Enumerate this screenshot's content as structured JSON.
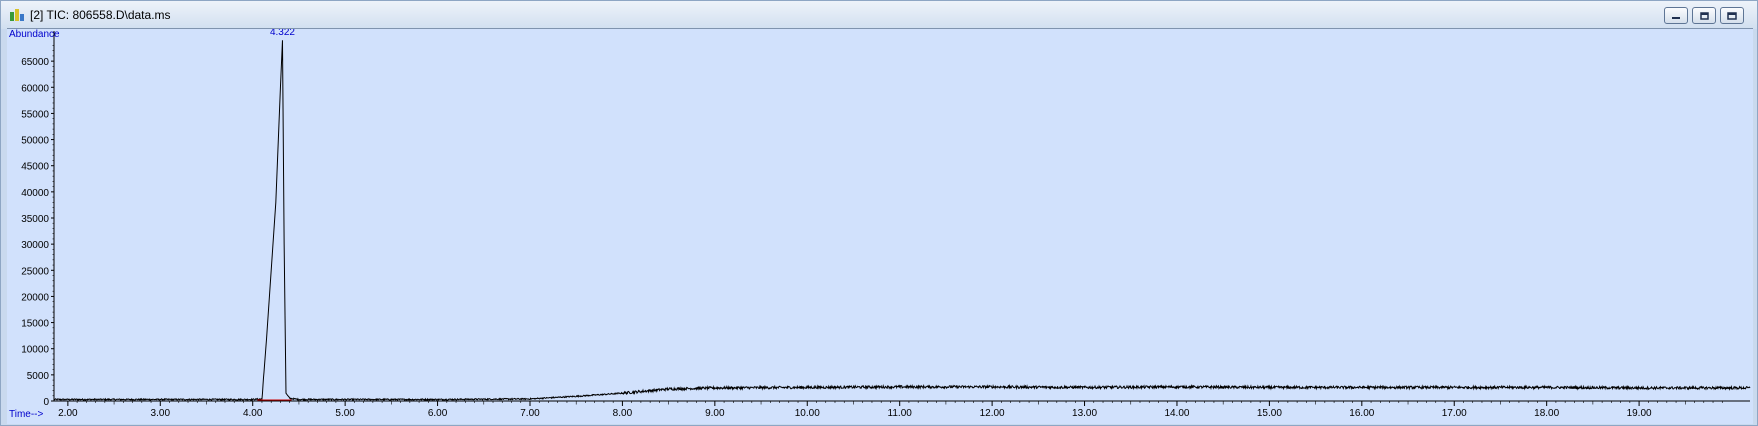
{
  "window": {
    "title": "[2] TIC: 806558.D\\data.ms",
    "icon": "chromatogram-app-icon",
    "buttons": [
      "minimize-icon",
      "restore-icon",
      "close-icon"
    ]
  },
  "colors": {
    "plot_bg": "#d1e1fc",
    "trace": "#000000",
    "axis_text": "#000000",
    "axis_label": "#0000cc",
    "peak_label": "#0000cc",
    "baseline_marker": "#cc0000"
  },
  "chart_data": {
    "type": "line",
    "title": "",
    "ylabel": "Abundance",
    "xlabel": "Time-->",
    "xlim": [
      1.85,
      20.2
    ],
    "ylim": [
      0,
      70000
    ],
    "x_ticks": [
      "2.00",
      "3.00",
      "4.00",
      "5.00",
      "6.00",
      "7.00",
      "8.00",
      "9.00",
      "10.00",
      "11.00",
      "12.00",
      "13.00",
      "14.00",
      "15.00",
      "16.00",
      "17.00",
      "18.00",
      "19.00"
    ],
    "y_ticks": [
      "0",
      "5000",
      "10000",
      "15000",
      "20000",
      "25000",
      "30000",
      "35000",
      "40000",
      "45000",
      "50000",
      "55000",
      "60000",
      "65000"
    ],
    "grid": false,
    "series": [
      {
        "x": [
          1.85,
          3.0,
          4.0,
          4.1,
          4.15,
          4.2,
          4.25,
          4.3,
          4.322,
          4.34,
          4.36,
          4.4,
          4.5,
          5.0,
          6.0,
          7.0,
          7.5,
          8.0,
          8.5,
          9.0,
          10.0,
          11.0,
          12.0,
          13.0,
          14.0,
          15.0,
          16.0,
          17.0,
          18.0,
          19.0,
          20.2
        ],
        "y": [
          300,
          300,
          300,
          400,
          12000,
          25000,
          38000,
          60000,
          69000,
          30000,
          1500,
          500,
          300,
          300,
          300,
          400,
          900,
          1500,
          2300,
          2500,
          2600,
          2700,
          2700,
          2600,
          2700,
          2600,
          2600,
          2600,
          2600,
          2500,
          2500
        ]
      }
    ],
    "annotations": [
      {
        "x": 4.322,
        "y": 69000,
        "text": "4.322"
      }
    ]
  }
}
